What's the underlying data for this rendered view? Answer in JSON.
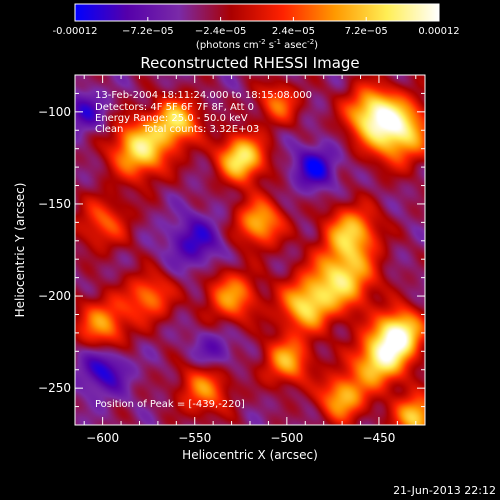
{
  "chart_data": {
    "type": "heatmap",
    "title": "Reconstructed RHESSI Image",
    "xlabel": "Heliocentric X (arcsec)",
    "ylabel": "Heliocentric Y (arcsec)",
    "xlim": [
      -615,
      -425
    ],
    "ylim": [
      -270,
      -80
    ],
    "x_ticks": [
      -600,
      -550,
      -500,
      -450
    ],
    "y_ticks": [
      -250,
      -200,
      -150,
      -100
    ],
    "colorbar": {
      "label_text": "(photons cm",
      "label_exp1": "-2",
      "label_s": " s",
      "label_exp2": "-1",
      "label_unit": " asec",
      "label_exp3": "-2",
      "label_end": ")",
      "range": [
        -0.00012,
        0.00012
      ],
      "ticks": [
        "-0.00012",
        "−7.2e−05",
        "−2.4e−05",
        "2.4e−05",
        "7.2e−05",
        "0.00012"
      ],
      "tick_values": [
        -0.00012,
        -7.2e-05,
        -2.4e-05,
        2.4e-05,
        7.2e-05,
        0.00012
      ],
      "colormap": [
        "#0000ff",
        "#5500aa",
        "#7a2aa8",
        "#aa0000",
        "#ff2200",
        "#ff9900",
        "#ffee55",
        "#ffffff"
      ]
    },
    "annotations": {
      "time_range": "13-Feb-2004 18:11:24.000 to 18:15:08.000",
      "detectors": "Detectors: 4F 5F 6F 7F 8F, Att 0",
      "energy": "Energy Range: 25.0 - 50.0 keV",
      "method": "Clean",
      "counts": "Total counts: 3.32E+03",
      "peak": "Position of Peak = [-439,-220]"
    },
    "sources": [
      {
        "x": -439,
        "y": -220,
        "amp": 1.0,
        "sigma": 9
      },
      {
        "x": -450,
        "y": -235,
        "amp": 0.85,
        "sigma": 10
      },
      {
        "x": -470,
        "y": -190,
        "amp": 0.8,
        "sigma": 12
      },
      {
        "x": -490,
        "y": -205,
        "amp": 0.75,
        "sigma": 10
      },
      {
        "x": -465,
        "y": -165,
        "amp": 0.7,
        "sigma": 10
      },
      {
        "x": -440,
        "y": -110,
        "amp": 0.9,
        "sigma": 12
      },
      {
        "x": -455,
        "y": -100,
        "amp": 0.7,
        "sigma": 10
      },
      {
        "x": -580,
        "y": -120,
        "amp": 0.85,
        "sigma": 11
      },
      {
        "x": -560,
        "y": -105,
        "amp": 0.75,
        "sigma": 9
      },
      {
        "x": -525,
        "y": -125,
        "amp": 0.9,
        "sigma": 9
      },
      {
        "x": -515,
        "y": -160,
        "amp": 0.7,
        "sigma": 9
      },
      {
        "x": -530,
        "y": -200,
        "amp": 0.6,
        "sigma": 10
      },
      {
        "x": -500,
        "y": -235,
        "amp": 0.65,
        "sigma": 9
      },
      {
        "x": -470,
        "y": -255,
        "amp": 0.7,
        "sigma": 9
      },
      {
        "x": -430,
        "y": -265,
        "amp": 0.8,
        "sigma": 8
      },
      {
        "x": -600,
        "y": -215,
        "amp": 0.6,
        "sigma": 10
      },
      {
        "x": -575,
        "y": -200,
        "amp": 0.55,
        "sigma": 9
      },
      {
        "x": -545,
        "y": -250,
        "amp": 0.55,
        "sigma": 10
      },
      {
        "x": -505,
        "y": -95,
        "amp": 0.5,
        "sigma": 8
      },
      {
        "x": -600,
        "y": -160,
        "amp": 0.45,
        "sigma": 10
      },
      {
        "x": -485,
        "y": -130,
        "amp": -0.5,
        "sigma": 8
      },
      {
        "x": -600,
        "y": -240,
        "amp": -0.45,
        "sigma": 9
      },
      {
        "x": -550,
        "y": -170,
        "amp": -0.4,
        "sigma": 10
      },
      {
        "x": -610,
        "y": -100,
        "amp": -0.35,
        "sigma": 8
      },
      {
        "x": -540,
        "y": -230,
        "amp": -0.3,
        "sigma": 8
      }
    ]
  },
  "footer": {
    "timestamp": "21-Jun-2013 22:12"
  }
}
